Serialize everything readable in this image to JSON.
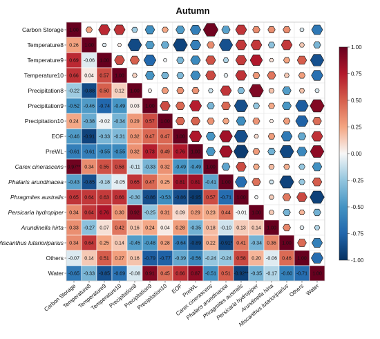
{
  "chart_data": {
    "type": "heatmap",
    "title": "Autumn",
    "variables": [
      "Carbon Storage",
      "Temperature8",
      "Temperature9",
      "Temperature10",
      "Precipitation8",
      "Precipitation9",
      "Precipitation10",
      "EOF",
      "PreWL",
      "Carex cinerascens",
      "Phalaris arundinacea",
      "Phragmites australis",
      "Persicaria hydropiper",
      "Arundinella hirta",
      "Miscanthus lutarioriparius",
      "Others",
      "Water"
    ],
    "italic_variables": [
      "Carex cinerascens",
      "Phalaris arundinacea",
      "Phragmites australis",
      "Persicaria hydropiper",
      "Arundinella hirta",
      "Miscanthus lutarioriparius"
    ],
    "matrix": [
      [
        1.0,
        0.26,
        0.69,
        0.66,
        -0.22,
        -0.52,
        0.24,
        -0.46,
        -0.61,
        0.97,
        -0.43,
        0.65,
        0.34,
        0.33,
        0.34,
        -0.07,
        -0.65
      ],
      [
        0.26,
        1.0,
        -0.06,
        0.04,
        -0.88,
        -0.46,
        -0.38,
        -0.91,
        -0.61,
        0.34,
        -0.85,
        0.64,
        0.64,
        -0.27,
        0.64,
        0.14,
        -0.33
      ],
      [
        0.69,
        -0.06,
        1.0,
        0.57,
        0.5,
        -0.74,
        -0.02,
        -0.33,
        -0.55,
        0.55,
        -0.18,
        0.63,
        0.76,
        0.07,
        0.25,
        0.51,
        -0.85
      ],
      [
        0.66,
        0.04,
        0.57,
        1.0,
        0.12,
        -0.49,
        -0.34,
        -0.31,
        -0.55,
        0.58,
        -0.05,
        0.66,
        0.3,
        0.42,
        0.14,
        0.27,
        -0.69
      ],
      [
        -0.22,
        -0.88,
        0.5,
        0.12,
        1.0,
        0.03,
        0.29,
        0.32,
        0.32,
        -0.11,
        0.65,
        -0.3,
        0.92,
        0.16,
        -0.45,
        0.16,
        -0.08
      ],
      [
        -0.52,
        -0.46,
        -0.74,
        -0.49,
        0.03,
        1.0,
        0.57,
        0.47,
        0.73,
        -0.33,
        0.47,
        -0.86,
        -0.25,
        0.24,
        -0.48,
        -0.79,
        0.91
      ],
      [
        0.24,
        -0.38,
        -0.02,
        -0.34,
        0.29,
        0.57,
        1.0,
        0.47,
        0.49,
        0.32,
        0.25,
        -0.53,
        0.31,
        0.04,
        0.28,
        -0.77,
        0.45
      ],
      [
        -0.46,
        -0.91,
        -0.33,
        -0.31,
        0.32,
        0.47,
        0.47,
        1.0,
        0.76,
        -0.49,
        0.81,
        -0.86,
        0.09,
        0.28,
        -0.64,
        -0.39,
        0.66
      ],
      [
        -0.61,
        -0.61,
        -0.55,
        -0.55,
        0.32,
        0.73,
        0.49,
        0.76,
        1.0,
        -0.49,
        0.81,
        -0.95,
        0.29,
        -0.35,
        -0.89,
        -0.56,
        0.87
      ],
      [
        0.97,
        0.34,
        0.55,
        0.58,
        -0.11,
        -0.33,
        0.32,
        -0.49,
        -0.49,
        1.0,
        -0.41,
        0.57,
        0.23,
        0.18,
        0.22,
        -0.24,
        -0.51
      ],
      [
        -0.43,
        -0.85,
        -0.18,
        -0.05,
        0.65,
        0.47,
        0.25,
        0.81,
        0.81,
        -0.41,
        1.0,
        -0.71,
        0.44,
        -0.1,
        -0.91,
        -0.24,
        0.51
      ],
      [
        0.65,
        0.64,
        0.63,
        0.66,
        -0.3,
        -0.86,
        -0.53,
        -0.86,
        -0.95,
        0.57,
        -0.71,
        1.0,
        -0.01,
        0.13,
        0.41,
        0.58,
        -0.92
      ],
      [
        0.34,
        0.64,
        0.76,
        0.3,
        0.92,
        -0.25,
        0.31,
        0.09,
        0.29,
        0.23,
        0.44,
        -0.01,
        1.0,
        0.14,
        -0.34,
        0.2,
        -0.35
      ],
      [
        0.33,
        -0.27,
        0.07,
        0.42,
        0.16,
        0.24,
        0.04,
        0.28,
        -0.35,
        0.18,
        -0.1,
        0.13,
        0.14,
        1.0,
        0.36,
        -0.06,
        -0.17
      ],
      [
        0.34,
        0.64,
        0.25,
        0.14,
        -0.45,
        -0.48,
        0.28,
        -0.64,
        -0.89,
        0.22,
        -0.91,
        0.41,
        -0.34,
        0.36,
        1.0,
        0.46,
        -0.6
      ],
      [
        -0.07,
        0.14,
        0.51,
        0.27,
        0.16,
        -0.79,
        -0.77,
        -0.39,
        -0.56,
        -0.24,
        -0.24,
        0.58,
        0.2,
        -0.06,
        0.46,
        1.0,
        -0.71
      ],
      [
        -0.65,
        -0.33,
        -0.85,
        -0.69,
        -0.08,
        0.91,
        0.45,
        0.66,
        0.87,
        -0.51,
        0.51,
        -0.92,
        -0.35,
        -0.17,
        -0.6,
        -0.71,
        1.0
      ]
    ],
    "significance": [
      {
        "row": 1,
        "col": 4,
        "mark": "*"
      },
      {
        "row": 1,
        "col": 7,
        "mark": "*"
      },
      {
        "row": 2,
        "col": 16,
        "mark": "*"
      },
      {
        "row": 4,
        "col": 12,
        "mark": "*"
      },
      {
        "row": 5,
        "col": 11,
        "mark": "*"
      },
      {
        "row": 5,
        "col": 16,
        "mark": "*"
      },
      {
        "row": 7,
        "col": 11,
        "mark": "*"
      },
      {
        "row": 8,
        "col": 10,
        "mark": "*"
      },
      {
        "row": 8,
        "col": 11,
        "mark": "**"
      },
      {
        "row": 8,
        "col": 14,
        "mark": "*"
      },
      {
        "row": 8,
        "col": 16,
        "mark": "*"
      },
      {
        "row": 9,
        "col": 0,
        "mark": "**"
      },
      {
        "row": 14,
        "col": 10,
        "mark": "*"
      },
      {
        "row": 16,
        "col": 11,
        "mark": "**"
      }
    ],
    "lower_triangle": "numeric values",
    "upper_triangle": "hexagons sized by |r|",
    "colorbar": {
      "ticks": [
        "1.00",
        "0.75",
        "0.50",
        "0.25",
        "0.00",
        "-0.25",
        "-0.50",
        "-0.75",
        "-1.00"
      ],
      "range": [
        -1,
        1
      ],
      "colors": {
        "neg": "#053061",
        "mid": "#f7f7f7",
        "pos": "#67001f"
      },
      "placement": "right"
    },
    "grid": true
  }
}
